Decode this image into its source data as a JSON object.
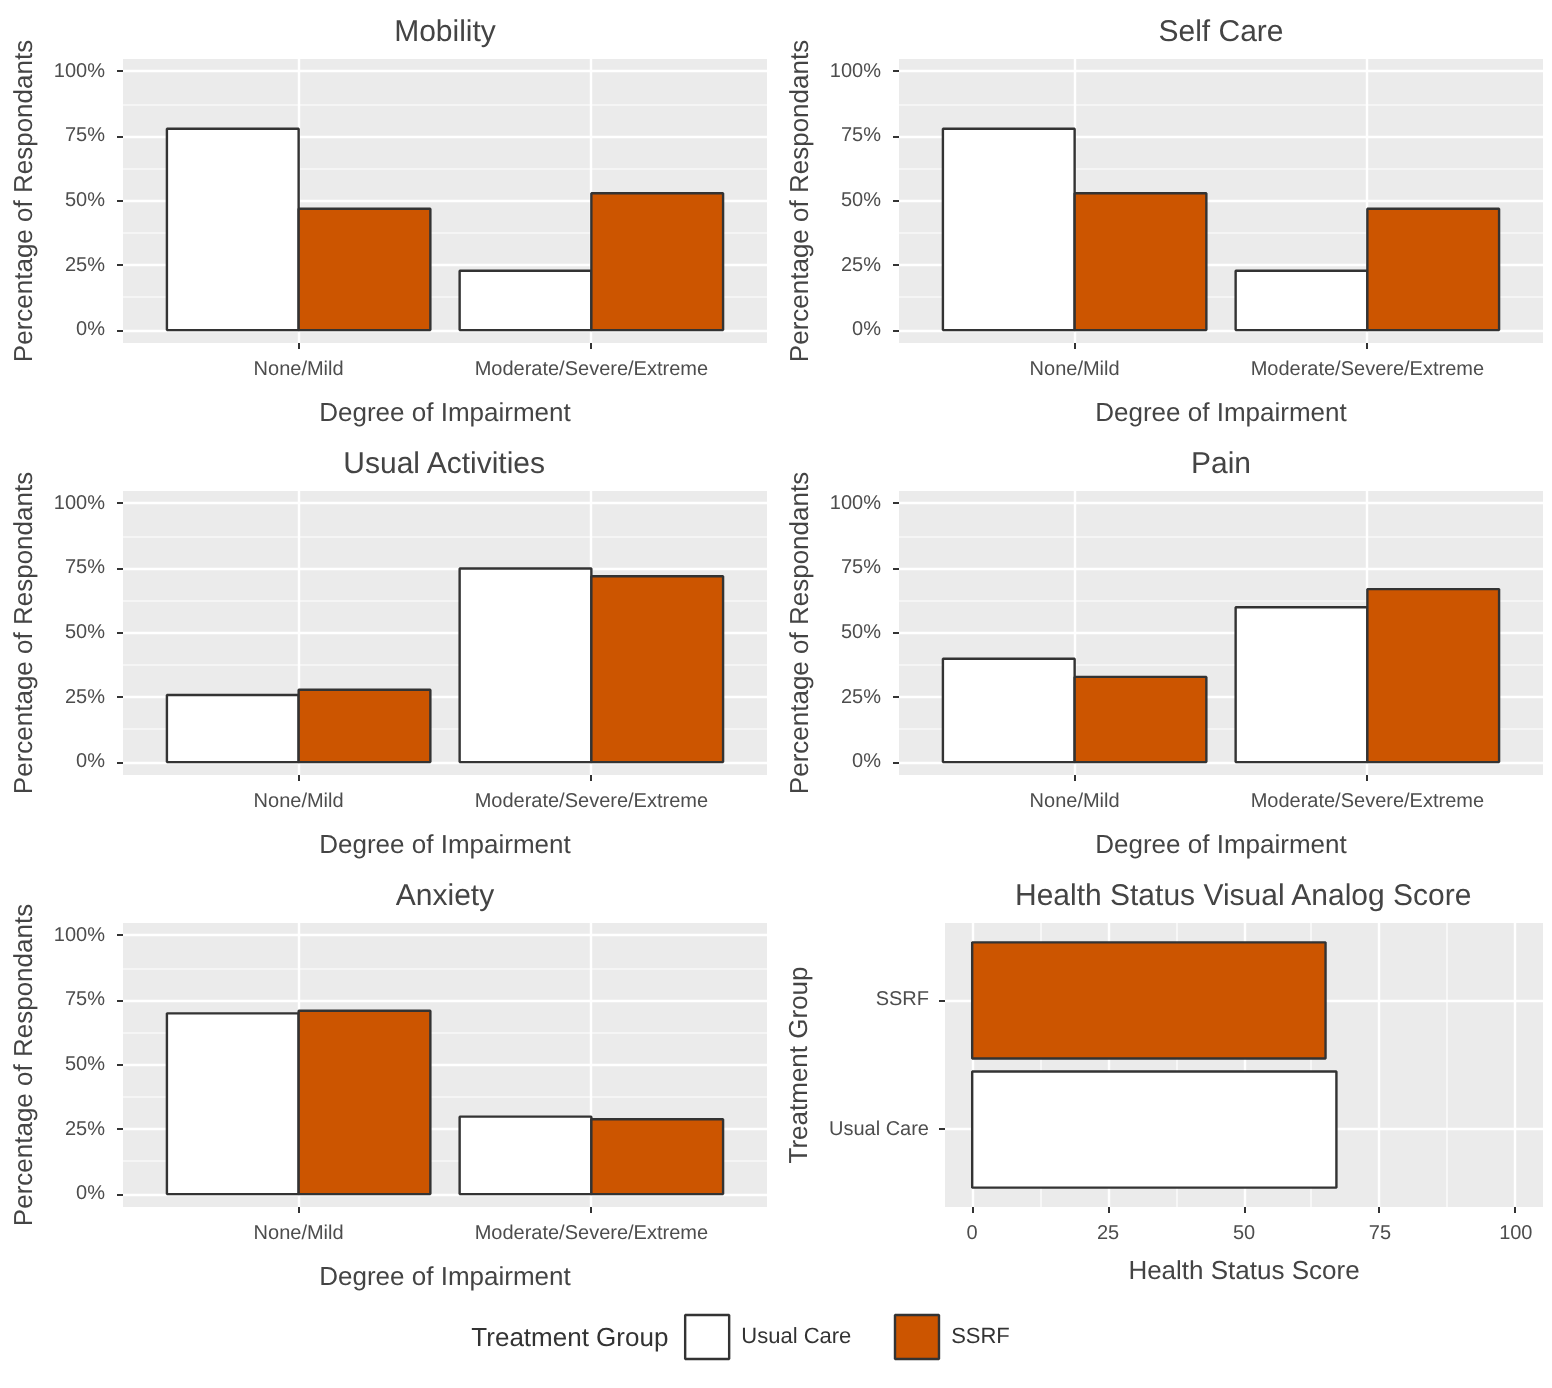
{
  "chart_data": [
    {
      "type": "bar",
      "title": "Mobility",
      "xlabel": "Degree of Impairment",
      "ylabel": "Percentage of Respondants",
      "categories": [
        "None/Mild",
        "Moderate/Severe/Extreme"
      ],
      "series": [
        {
          "name": "Usual Care",
          "color": "#ffffff",
          "values": [
            78,
            23
          ]
        },
        {
          "name": "SSRF",
          "color": "#cc5500",
          "values": [
            47,
            53
          ]
        }
      ],
      "ylim": [
        -5,
        105
      ],
      "yticks": [
        {
          "value": 0,
          "label": "0%"
        },
        {
          "value": 25,
          "label": "25%"
        },
        {
          "value": 50,
          "label": "50%"
        },
        {
          "value": 75,
          "label": "75%"
        },
        {
          "value": 100,
          "label": "100%"
        }
      ],
      "grid": true,
      "legend": "bottom",
      "legend_title": "Treatment Group"
    },
    {
      "type": "bar",
      "title": "Self Care",
      "xlabel": "Degree of Impairment",
      "ylabel": "Percentage of Respondants",
      "categories": [
        "None/Mild",
        "Moderate/Severe/Extreme"
      ],
      "series": [
        {
          "name": "Usual Care",
          "color": "#ffffff",
          "values": [
            78,
            23
          ]
        },
        {
          "name": "SSRF",
          "color": "#cc5500",
          "values": [
            53,
            47
          ]
        }
      ],
      "ylim": [
        -5,
        105
      ],
      "yticks": [
        {
          "value": 0,
          "label": "0%"
        },
        {
          "value": 25,
          "label": "25%"
        },
        {
          "value": 50,
          "label": "50%"
        },
        {
          "value": 75,
          "label": "75%"
        },
        {
          "value": 100,
          "label": "100%"
        }
      ],
      "grid": true,
      "legend": "bottom"
    },
    {
      "type": "bar",
      "title": "Usual Activities",
      "xlabel": "Degree of Impairment",
      "ylabel": "Percentage of Respondants",
      "categories": [
        "None/Mild",
        "Moderate/Severe/Extreme"
      ],
      "series": [
        {
          "name": "Usual Care",
          "color": "#ffffff",
          "values": [
            26,
            75
          ]
        },
        {
          "name": "SSRF",
          "color": "#cc5500",
          "values": [
            28,
            72
          ]
        }
      ],
      "ylim": [
        -5,
        105
      ],
      "yticks": [
        {
          "value": 0,
          "label": "0%"
        },
        {
          "value": 25,
          "label": "25%"
        },
        {
          "value": 50,
          "label": "50%"
        },
        {
          "value": 75,
          "label": "75%"
        },
        {
          "value": 100,
          "label": "100%"
        }
      ],
      "grid": true,
      "legend": "bottom"
    },
    {
      "type": "bar",
      "title": "Pain",
      "xlabel": "Degree of Impairment",
      "ylabel": "Percentage of Respondants",
      "categories": [
        "None/Mild",
        "Moderate/Severe/Extreme"
      ],
      "series": [
        {
          "name": "Usual Care",
          "color": "#ffffff",
          "values": [
            40,
            60
          ]
        },
        {
          "name": "SSRF",
          "color": "#cc5500",
          "values": [
            33,
            67
          ]
        }
      ],
      "ylim": [
        -5,
        105
      ],
      "yticks": [
        {
          "value": 0,
          "label": "0%"
        },
        {
          "value": 25,
          "label": "25%"
        },
        {
          "value": 50,
          "label": "50%"
        },
        {
          "value": 75,
          "label": "75%"
        },
        {
          "value": 100,
          "label": "100%"
        }
      ],
      "grid": true,
      "legend": "bottom"
    },
    {
      "type": "bar",
      "title": "Anxiety",
      "xlabel": "Degree of Impairment",
      "ylabel": "Percentage of Respondants",
      "categories": [
        "None/Mild",
        "Moderate/Severe/Extreme"
      ],
      "series": [
        {
          "name": "Usual Care",
          "color": "#ffffff",
          "values": [
            70,
            30
          ]
        },
        {
          "name": "SSRF",
          "color": "#cc5500",
          "values": [
            71,
            29
          ]
        }
      ],
      "ylim": [
        -5,
        105
      ],
      "yticks": [
        {
          "value": 0,
          "label": "0%"
        },
        {
          "value": 25,
          "label": "25%"
        },
        {
          "value": 50,
          "label": "50%"
        },
        {
          "value": 75,
          "label": "75%"
        },
        {
          "value": 100,
          "label": "100%"
        }
      ],
      "grid": true,
      "legend": "bottom"
    },
    {
      "type": "bar",
      "orientation": "horizontal",
      "title": "Health Status Visual Analog Score",
      "xlabel": "Health Status Score",
      "ylabel": "Treatment Group",
      "categories": [
        "SSRF",
        "Usual Care"
      ],
      "values": [
        65,
        67
      ],
      "colors": [
        "#cc5500",
        "#ffffff"
      ],
      "xlim": [
        -5,
        105
      ],
      "xticks": [
        0,
        25,
        50,
        75,
        100
      ],
      "grid": true
    }
  ]
}
